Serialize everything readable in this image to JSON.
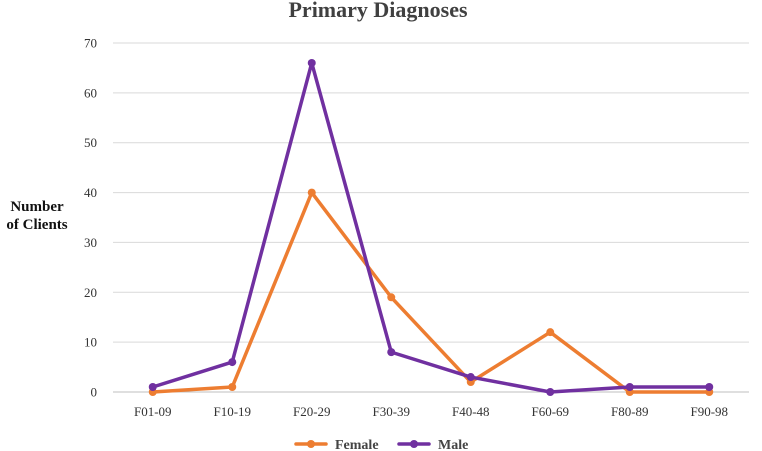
{
  "chart_data": {
    "type": "line",
    "title": "Primary Diagnoses",
    "xlabel": "",
    "ylabel": [
      "Number",
      "of Clients"
    ],
    "categories": [
      "F01-09",
      "F10-19",
      "F20-29",
      "F30-39",
      "F40-48",
      "F60-69",
      "F80-89",
      "F90-98"
    ],
    "ylim": [
      0,
      70
    ],
    "yticks": [
      0,
      10,
      20,
      30,
      40,
      50,
      60,
      70
    ],
    "grid": true,
    "legend": "bottom",
    "series": [
      {
        "name": "Female",
        "color": "#ED7D31",
        "values": [
          0,
          1,
          40,
          19,
          2,
          12,
          0,
          0
        ]
      },
      {
        "name": "Male",
        "color": "#7030A0",
        "values": [
          1,
          6,
          66,
          8,
          3,
          0,
          1,
          1
        ]
      }
    ]
  }
}
